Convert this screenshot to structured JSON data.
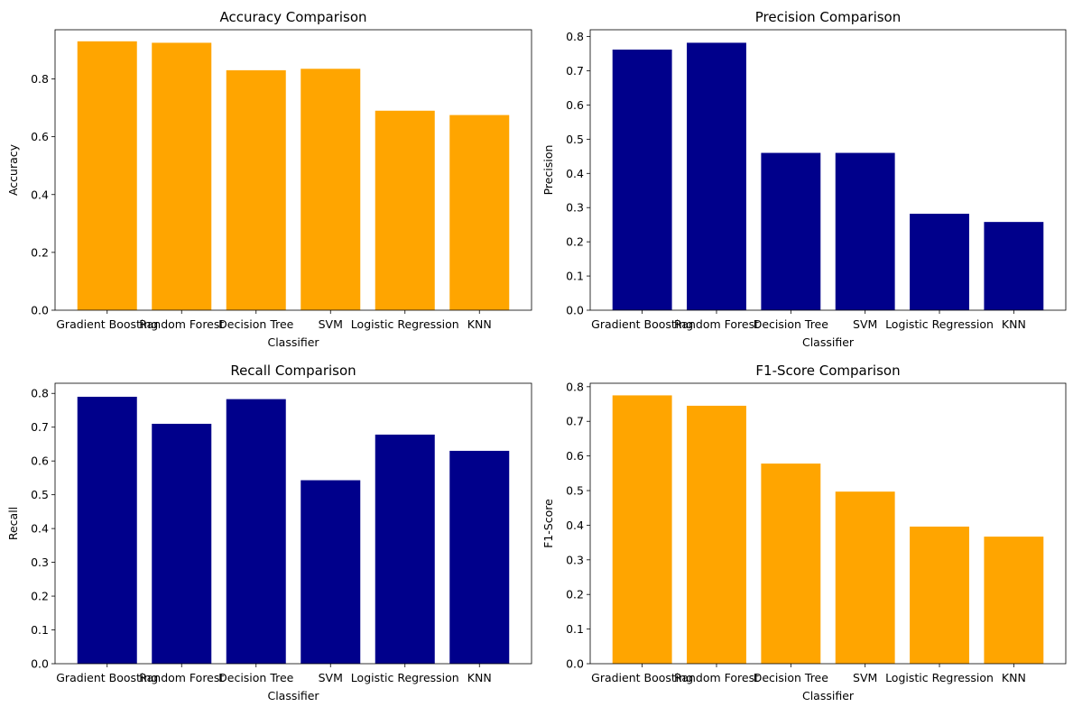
{
  "figure": {
    "background": "#ffffff"
  },
  "chart_data": [
    {
      "type": "bar",
      "title": "Accuracy Comparison",
      "xlabel": "Classifier",
      "ylabel": "Accuracy",
      "categories": [
        "Gradient Boosting",
        "Random Forest",
        "Decision Tree",
        "SVM",
        "Logistic Regression",
        "KNN"
      ],
      "values": [
        0.93,
        0.925,
        0.83,
        0.835,
        0.69,
        0.675
      ],
      "ylim": [
        0,
        0.97
      ],
      "yticks": [
        0.0,
        0.2,
        0.4,
        0.6,
        0.8
      ],
      "ytick_labels": [
        "0.0",
        "0.2",
        "0.4",
        "0.6",
        "0.8"
      ],
      "color": "#ffa500",
      "grid": false,
      "legend": "none"
    },
    {
      "type": "bar",
      "title": "Precision Comparison",
      "xlabel": "Classifier",
      "ylabel": "Precision",
      "categories": [
        "Gradient Boosting",
        "Random Forest",
        "Decision Tree",
        "SVM",
        "Logistic Regression",
        "KNN"
      ],
      "values": [
        0.762,
        0.782,
        0.46,
        0.46,
        0.282,
        0.258
      ],
      "ylim": [
        0,
        0.82
      ],
      "yticks": [
        0.0,
        0.1,
        0.2,
        0.3,
        0.4,
        0.5,
        0.6,
        0.7,
        0.8
      ],
      "ytick_labels": [
        "0.0",
        "0.1",
        "0.2",
        "0.3",
        "0.4",
        "0.5",
        "0.6",
        "0.7",
        "0.8"
      ],
      "color": "#00008b",
      "grid": false,
      "legend": "none"
    },
    {
      "type": "bar",
      "title": "Recall Comparison",
      "xlabel": "Classifier",
      "ylabel": "Recall",
      "categories": [
        "Gradient Boosting",
        "Random Forest",
        "Decision Tree",
        "SVM",
        "Logistic Regression",
        "KNN"
      ],
      "values": [
        0.79,
        0.71,
        0.783,
        0.543,
        0.678,
        0.63
      ],
      "ylim": [
        0,
        0.83
      ],
      "yticks": [
        0.0,
        0.1,
        0.2,
        0.3,
        0.4,
        0.5,
        0.6,
        0.7,
        0.8
      ],
      "ytick_labels": [
        "0.0",
        "0.1",
        "0.2",
        "0.3",
        "0.4",
        "0.5",
        "0.6",
        "0.7",
        "0.8"
      ],
      "color": "#00008b",
      "grid": false,
      "legend": "none"
    },
    {
      "type": "bar",
      "title": "F1-Score Comparison",
      "xlabel": "Classifier",
      "ylabel": "F1-Score",
      "categories": [
        "Gradient Boosting",
        "Random Forest",
        "Decision Tree",
        "SVM",
        "Logistic Regression",
        "KNN"
      ],
      "values": [
        0.775,
        0.745,
        0.578,
        0.497,
        0.396,
        0.367
      ],
      "ylim": [
        0,
        0.81
      ],
      "yticks": [
        0.0,
        0.1,
        0.2,
        0.3,
        0.4,
        0.5,
        0.6,
        0.7,
        0.8
      ],
      "ytick_labels": [
        "0.0",
        "0.1",
        "0.2",
        "0.3",
        "0.4",
        "0.5",
        "0.6",
        "0.7",
        "0.8"
      ],
      "color": "#ffa500",
      "grid": false,
      "legend": "none"
    }
  ]
}
